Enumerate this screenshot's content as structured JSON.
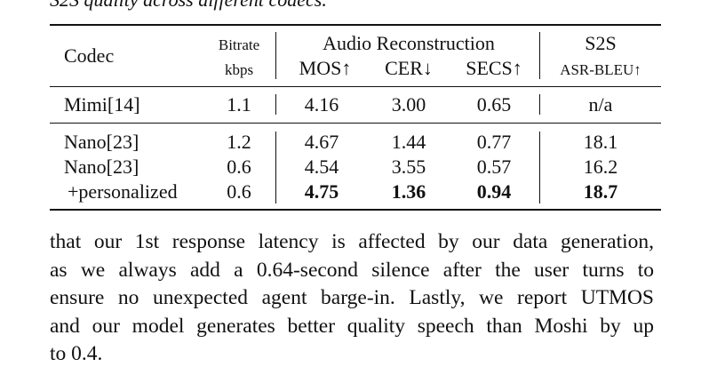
{
  "caption_fragment": "S2S quality across different codecs.",
  "table": {
    "header": {
      "codec": "Codec",
      "bitrate": "Bitrate",
      "bitrate_unit": "kbps",
      "group_audio": "Audio Reconstruction",
      "mos": "MOS↑",
      "cer": "CER↓",
      "secs": "SECS↑",
      "group_s2s": "S2S",
      "asr_bleu": "ASR-BLEU↑"
    },
    "rows": [
      {
        "codec": "Mimi[14]",
        "bitrate": "1.1",
        "mos": "4.16",
        "cer": "3.00",
        "secs": "0.65",
        "asr_bleu": "n/a",
        "bold": false
      },
      {
        "codec": "Nano[23]",
        "bitrate": "1.2",
        "mos": "4.67",
        "cer": "1.44",
        "secs": "0.77",
        "asr_bleu": "18.1",
        "bold": false
      },
      {
        "codec": "Nano[23]",
        "bitrate": "0.6",
        "mos": "4.54",
        "cer": "3.55",
        "secs": "0.57",
        "asr_bleu": "16.2",
        "bold": false
      },
      {
        "codec": "+personalized",
        "bitrate": "0.6",
        "mos": "4.75",
        "cer": "1.36",
        "secs": "0.94",
        "asr_bleu": "18.7",
        "bold": true
      }
    ]
  },
  "paragraph_lines": [
    "that our 1st response latency is affected by our data generation,",
    "as we always add a 0.64-second silence after the user turns to",
    "ensure no unexpected agent barge-in. Lastly, we report UTMOS",
    "and our model generates better quality speech than Moshi by up",
    "to 0.4."
  ]
}
